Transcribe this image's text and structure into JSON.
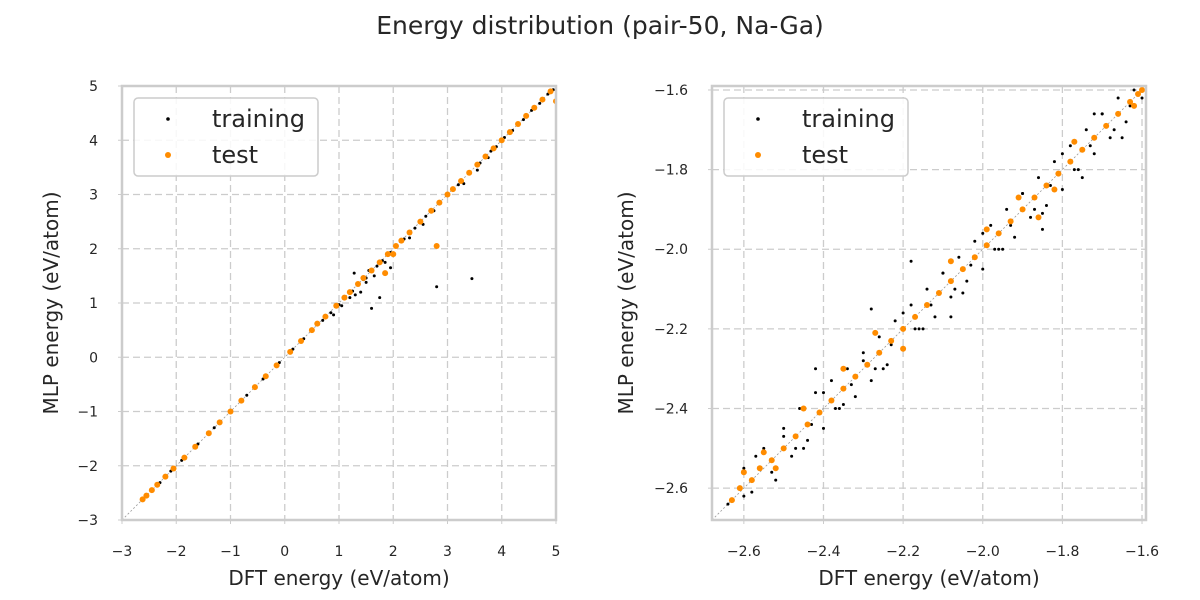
{
  "figure": {
    "title": "Energy distribution (pair-50, Na-Ga)"
  },
  "chart_data": [
    {
      "type": "scatter",
      "xlabel": "DFT energy (eV/atom)",
      "ylabel": "MLP energy (eV/atom)",
      "xlim": [
        -3,
        5
      ],
      "ylim": [
        -3,
        5
      ],
      "xticks": [
        -3,
        -2,
        -1,
        0,
        1,
        2,
        3,
        4,
        5
      ],
      "yticks": [
        -3,
        -2,
        -1,
        0,
        1,
        2,
        3,
        4,
        5
      ],
      "xtick_labels": [
        "−3",
        "−2",
        "−1",
        "0",
        "1",
        "2",
        "3",
        "4",
        "5"
      ],
      "ytick_labels": [
        "−3",
        "−2",
        "−1",
        "0",
        "1",
        "2",
        "3",
        "4",
        "5"
      ],
      "grid": true,
      "legend": "top-left",
      "diagonal_reference": true,
      "series": [
        {
          "name": "training",
          "color": "#000000",
          "marker_size": "small",
          "x": [
            -2.6,
            -2.45,
            -2.3,
            -2.1,
            -1.9,
            -1.6,
            -1.3,
            -1.0,
            -0.7,
            -0.4,
            -0.1,
            0.15,
            0.35,
            0.5,
            0.7,
            0.85,
            1.0,
            1.1,
            1.25,
            1.35,
            1.45,
            1.5,
            1.6,
            1.7,
            1.8,
            1.95,
            2.05,
            2.2,
            2.4,
            2.6,
            2.85,
            3.0,
            3.2,
            3.4,
            3.6,
            3.8,
            3.9,
            4.05,
            4.2,
            4.4,
            4.55,
            4.7,
            4.85,
            4.95,
            0.9,
            1.05,
            1.2,
            1.3,
            1.5,
            1.65,
            1.85,
            2.0,
            2.3,
            2.55,
            2.75,
            3.3,
            3.55,
            3.75,
            1.28,
            1.4,
            1.6,
            1.95,
            2.8,
            3.45,
            1.55,
            1.75
          ],
          "y": [
            -2.6,
            -2.44,
            -2.31,
            -2.1,
            -1.9,
            -1.6,
            -1.3,
            -1.0,
            -0.7,
            -0.4,
            -0.1,
            0.15,
            0.34,
            0.48,
            0.68,
            0.82,
            0.97,
            1.08,
            1.22,
            1.33,
            1.43,
            1.46,
            1.58,
            1.68,
            1.78,
            1.93,
            2.04,
            2.18,
            2.38,
            2.6,
            2.83,
            3.0,
            3.18,
            3.39,
            3.58,
            3.8,
            3.88,
            4.05,
            4.18,
            4.38,
            4.55,
            4.68,
            4.85,
            4.93,
            0.78,
            0.95,
            1.1,
            1.15,
            1.38,
            1.5,
            1.75,
            1.88,
            2.2,
            2.45,
            2.7,
            3.2,
            3.45,
            3.68,
            1.55,
            1.2,
            0.9,
            1.65,
            1.3,
            1.45,
            1.6,
            1.1
          ]
        },
        {
          "name": "test",
          "color": "#ff8c00",
          "marker_size": "medium",
          "x": [
            -2.62,
            -2.55,
            -2.45,
            -2.35,
            -2.2,
            -2.05,
            -1.85,
            -1.65,
            -1.4,
            -1.2,
            -1.0,
            -0.8,
            -0.55,
            -0.35,
            -0.15,
            0.1,
            0.3,
            0.5,
            0.6,
            0.75,
            0.95,
            1.1,
            1.2,
            1.35,
            1.45,
            1.6,
            1.75,
            1.9,
            2.05,
            2.15,
            2.3,
            2.5,
            2.7,
            2.85,
            3.0,
            3.1,
            3.25,
            3.4,
            3.55,
            3.7,
            3.85,
            4.0,
            4.15,
            4.3,
            4.45,
            4.6,
            4.75,
            4.9,
            5.0,
            2.8,
            1.85,
            2.0
          ],
          "y": [
            -2.62,
            -2.55,
            -2.45,
            -2.35,
            -2.2,
            -2.05,
            -1.85,
            -1.65,
            -1.4,
            -1.2,
            -1.0,
            -0.8,
            -0.55,
            -0.35,
            -0.15,
            0.1,
            0.3,
            0.5,
            0.62,
            0.75,
            0.95,
            1.1,
            1.2,
            1.35,
            1.46,
            1.6,
            1.75,
            1.9,
            2.05,
            2.15,
            2.3,
            2.5,
            2.7,
            2.85,
            3.0,
            3.1,
            3.25,
            3.4,
            3.55,
            3.7,
            3.85,
            4.0,
            4.15,
            4.3,
            4.45,
            4.6,
            4.75,
            4.9,
            4.72,
            2.05,
            1.55,
            1.9
          ]
        }
      ]
    },
    {
      "type": "scatter",
      "xlabel": "DFT energy (eV/atom)",
      "ylabel": "MLP energy (eV/atom)",
      "xlim": [
        -2.68,
        -1.59
      ],
      "ylim": [
        -2.68,
        -1.59
      ],
      "xticks": [
        -2.6,
        -2.4,
        -2.2,
        -2.0,
        -1.8,
        -1.6
      ],
      "yticks": [
        -2.6,
        -2.4,
        -2.2,
        -2.0,
        -1.8,
        -1.6
      ],
      "xtick_labels": [
        "−2.6",
        "−2.4",
        "−2.2",
        "−2.0",
        "−1.8",
        "−1.6"
      ],
      "ytick_labels": [
        "−2.6",
        "−2.4",
        "−2.2",
        "−2.0",
        "−1.8",
        "−1.6"
      ],
      "grid": true,
      "legend": "top-left",
      "diagonal_reference": true,
      "series": [
        {
          "name": "training",
          "color": "#000000",
          "marker_size": "small",
          "x": [
            -2.64,
            -2.6,
            -2.58,
            -2.55,
            -2.52,
            -2.5,
            -2.48,
            -2.46,
            -2.44,
            -2.42,
            -2.4,
            -2.38,
            -2.36,
            -2.34,
            -2.32,
            -2.3,
            -2.28,
            -2.26,
            -2.24,
            -2.22,
            -2.2,
            -2.18,
            -2.16,
            -2.14,
            -2.12,
            -2.1,
            -2.08,
            -2.06,
            -2.04,
            -2.02,
            -2.0,
            -1.98,
            -1.96,
            -1.94,
            -1.92,
            -1.9,
            -1.88,
            -1.86,
            -1.84,
            -1.82,
            -1.8,
            -1.78,
            -1.76,
            -1.74,
            -1.72,
            -1.7,
            -1.68,
            -1.66,
            -1.64,
            -1.62,
            -1.6,
            -2.57,
            -2.5,
            -2.45,
            -2.4,
            -2.35,
            -2.3,
            -2.25,
            -2.2,
            -2.15,
            -2.1,
            -2.05,
            -2.0,
            -1.95,
            -1.9,
            -1.85,
            -1.8,
            -1.75,
            -1.7,
            -1.65,
            -2.6,
            -2.53,
            -2.47,
            -2.43,
            -2.37,
            -2.33,
            -2.27,
            -2.23,
            -2.17,
            -2.13,
            -2.07,
            -2.03,
            -1.97,
            -1.93,
            -1.87,
            -1.83,
            -1.77,
            -1.73,
            -1.67,
            -1.63,
            -2.18,
            -2.28,
            -1.85,
            -1.72,
            -2.42,
            -2.08
          ],
          "y": [
            -2.64,
            -2.55,
            -2.61,
            -2.5,
            -2.58,
            -2.45,
            -2.52,
            -2.4,
            -2.48,
            -2.36,
            -2.45,
            -2.33,
            -2.4,
            -2.3,
            -2.37,
            -2.26,
            -2.33,
            -2.22,
            -2.29,
            -2.18,
            -2.25,
            -2.14,
            -2.2,
            -2.1,
            -2.17,
            -2.06,
            -2.12,
            -2.02,
            -2.08,
            -1.98,
            -2.05,
            -1.94,
            -2.0,
            -1.9,
            -1.97,
            -1.86,
            -1.92,
            -1.82,
            -1.89,
            -1.78,
            -1.85,
            -1.74,
            -1.8,
            -1.7,
            -1.76,
            -1.66,
            -1.72,
            -1.62,
            -1.68,
            -1.6,
            -1.62,
            -2.52,
            -2.47,
            -2.5,
            -2.36,
            -2.39,
            -2.28,
            -2.3,
            -2.16,
            -2.2,
            -2.06,
            -2.11,
            -1.96,
            -2.0,
            -1.86,
            -1.91,
            -1.76,
            -1.82,
            -1.66,
            -1.72,
            -2.62,
            -2.56,
            -2.5,
            -2.44,
            -2.4,
            -2.34,
            -2.3,
            -2.24,
            -2.2,
            -2.14,
            -2.1,
            -2.04,
            -2.0,
            -1.94,
            -1.9,
            -1.84,
            -1.8,
            -1.74,
            -1.7,
            -1.64,
            -2.03,
            -2.15,
            -1.95,
            -1.66,
            -2.3,
            -2.17
          ]
        },
        {
          "name": "test",
          "color": "#ff8c00",
          "marker_size": "medium",
          "x": [
            -2.63,
            -2.61,
            -2.58,
            -2.56,
            -2.53,
            -2.5,
            -2.47,
            -2.44,
            -2.41,
            -2.38,
            -2.35,
            -2.32,
            -2.29,
            -2.26,
            -2.23,
            -2.2,
            -2.17,
            -2.14,
            -2.11,
            -2.08,
            -2.05,
            -2.02,
            -1.99,
            -1.96,
            -1.93,
            -1.9,
            -1.87,
            -1.84,
            -1.81,
            -1.78,
            -1.75,
            -1.72,
            -1.69,
            -1.66,
            -1.63,
            -1.61,
            -1.6,
            -2.6,
            -2.55,
            -2.52,
            -2.27,
            -2.2,
            -2.08,
            -1.91,
            -1.86,
            -1.77,
            -1.62,
            -2.45,
            -2.35,
            -1.99,
            -1.82
          ],
          "y": [
            -2.63,
            -2.6,
            -2.58,
            -2.55,
            -2.53,
            -2.5,
            -2.47,
            -2.44,
            -2.41,
            -2.38,
            -2.35,
            -2.32,
            -2.29,
            -2.26,
            -2.23,
            -2.2,
            -2.17,
            -2.14,
            -2.11,
            -2.08,
            -2.05,
            -2.02,
            -1.99,
            -1.96,
            -1.93,
            -1.9,
            -1.87,
            -1.84,
            -1.81,
            -1.78,
            -1.75,
            -1.72,
            -1.69,
            -1.66,
            -1.63,
            -1.61,
            -1.6,
            -2.56,
            -2.51,
            -2.55,
            -2.21,
            -2.25,
            -2.03,
            -1.87,
            -1.92,
            -1.73,
            -1.64,
            -2.4,
            -2.3,
            -1.95,
            -1.85
          ]
        }
      ]
    }
  ]
}
